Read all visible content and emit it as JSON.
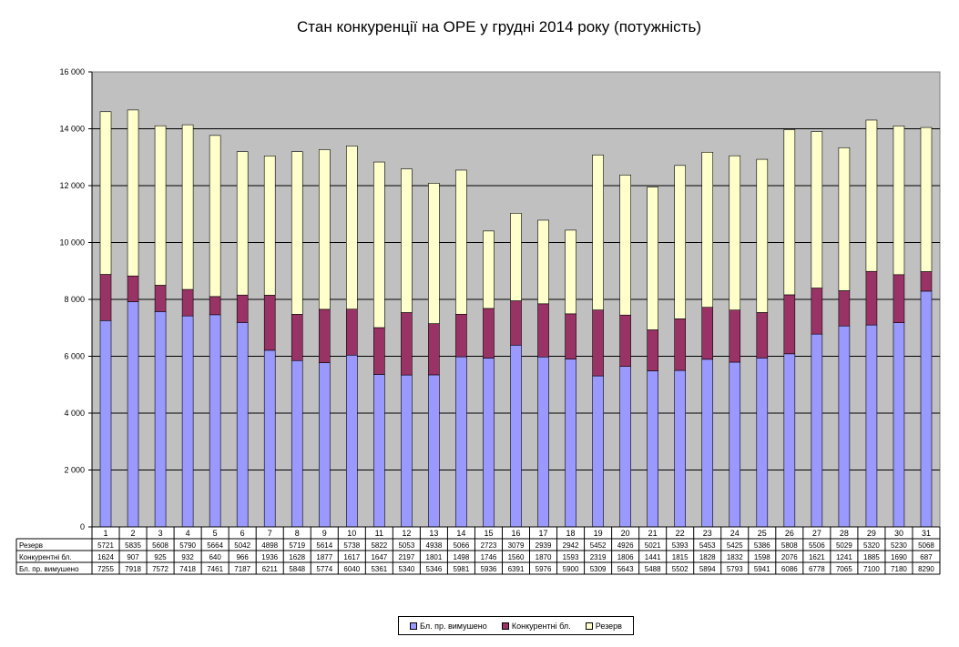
{
  "chart_data": {
    "type": "bar",
    "stacked": true,
    "title": "Стан конкуренції на ОРЕ  у грудні 2014 року (потужність)",
    "categories": [
      "1",
      "2",
      "3",
      "4",
      "5",
      "6",
      "7",
      "8",
      "9",
      "10",
      "11",
      "12",
      "13",
      "14",
      "15",
      "16",
      "17",
      "18",
      "19",
      "20",
      "21",
      "22",
      "23",
      "24",
      "25",
      "26",
      "27",
      "28",
      "29",
      "30",
      "31"
    ],
    "series": [
      {
        "name": "Бл. пр. вимушено",
        "color": "#9999ff",
        "values": [
          7255,
          7918,
          7572,
          7418,
          7461,
          7187,
          6211,
          5848,
          5774,
          6040,
          5361,
          5340,
          5346,
          5981,
          5936,
          6391,
          5976,
          5900,
          5309,
          5643,
          5488,
          5502,
          5894,
          5793,
          5941,
          6086,
          6778,
          7065,
          7100,
          7180,
          8290
        ]
      },
      {
        "name": "Конкурентні бл.",
        "color": "#993366",
        "values": [
          1624,
          907,
          925,
          932,
          640,
          966,
          1936,
          1628,
          1877,
          1617,
          1647,
          2197,
          1801,
          1498,
          1746,
          1560,
          1870,
          1593,
          2319,
          1806,
          1441,
          1815,
          1828,
          1832,
          1598,
          2076,
          1621,
          1241,
          1885,
          1690,
          687
        ]
      },
      {
        "name": "Резерв",
        "color": "#ffffcc",
        "values": [
          5721,
          5835,
          5608,
          5790,
          5664,
          5042,
          4898,
          5719,
          5614,
          5738,
          5822,
          5053,
          4938,
          5066,
          2723,
          3079,
          2939,
          2942,
          5452,
          4926,
          5021,
          5393,
          5453,
          5425,
          5386,
          5808,
          5506,
          5029,
          5320,
          5230,
          5068
        ]
      }
    ],
    "table_rows": [
      {
        "label": "Резерв",
        "series_index": 2
      },
      {
        "label": "Конкурентні бл.",
        "series_index": 1
      },
      {
        "label": "Бл. пр. вимушено",
        "series_index": 0
      }
    ],
    "y_ticks": [
      "0",
      "2 000",
      "4 000",
      "6 000",
      "8 000",
      "10 000",
      "12 000",
      "14 000",
      "16 000"
    ],
    "ylim": [
      0,
      16000
    ],
    "grid": true,
    "plot_background": "#c0c0c0",
    "legend": {
      "placement": "bottom",
      "items": [
        {
          "label": "Бл. пр. вимушено",
          "color": "#9999ff"
        },
        {
          "label": "Конкурентні бл.",
          "color": "#993366"
        },
        {
          "label": "Резерв",
          "color": "#ffffcc"
        }
      ]
    }
  }
}
